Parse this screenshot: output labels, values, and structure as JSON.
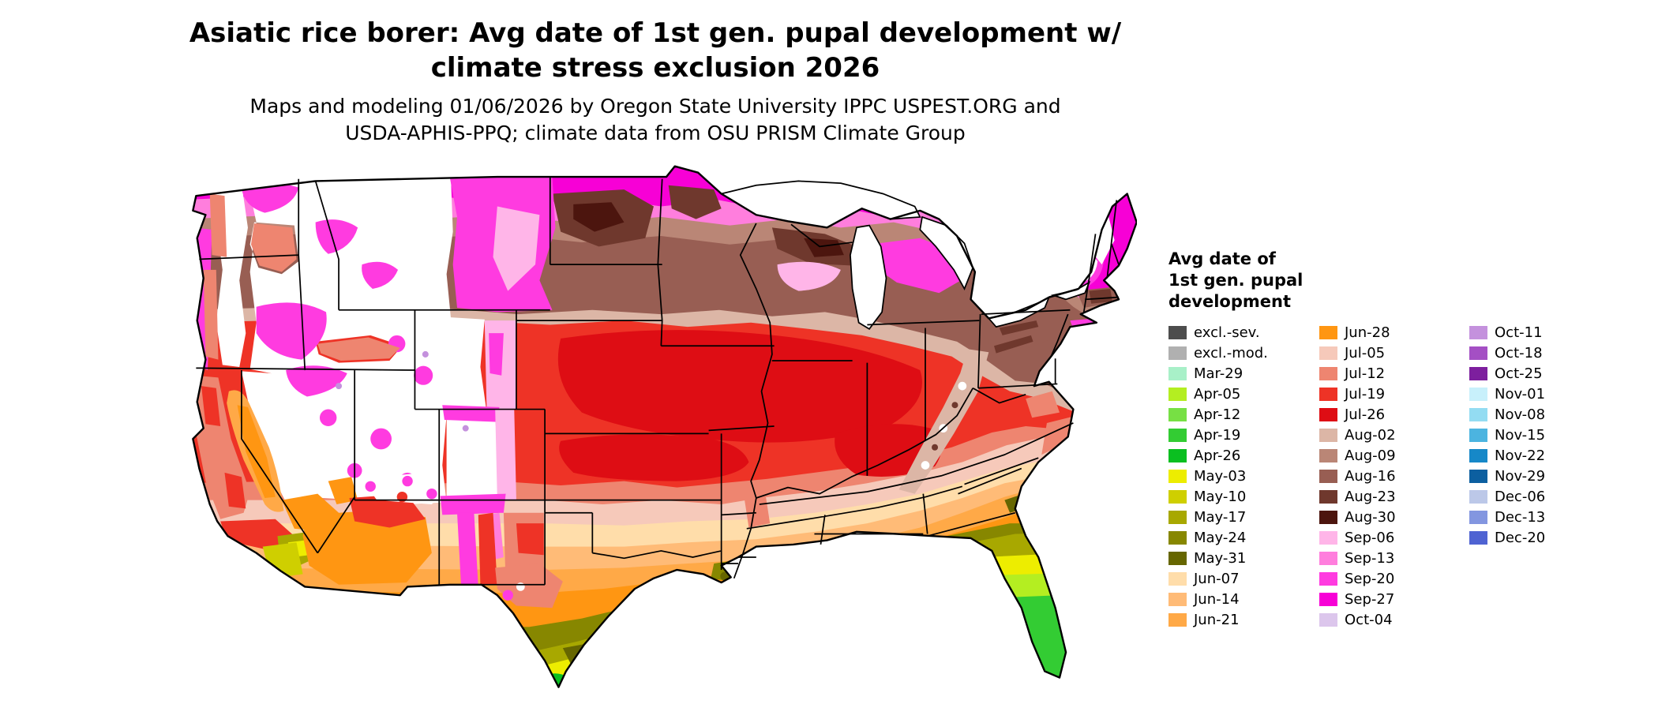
{
  "title": {
    "line1": "Asiatic rice borer: Avg date of 1st gen. pupal development w/",
    "line2": "climate stress exclusion 2026"
  },
  "subtitle": {
    "line1": "Maps and modeling 01/06/2026 by Oregon State University IPPC USPEST.ORG and",
    "line2": "USDA-APHIS-PPQ; climate data from OSU PRISM Climate Group"
  },
  "legend": {
    "title_lines": [
      "Avg date of",
      "1st gen. pupal",
      "development"
    ],
    "columns": [
      [
        {
          "label": "excl.-sev.",
          "color": "#4d4d4d"
        },
        {
          "label": "excl.-mod.",
          "color": "#b0b0b0"
        },
        {
          "label": "Mar-29",
          "color": "#a8f0c8"
        },
        {
          "label": "Apr-05",
          "color": "#b4ee21"
        },
        {
          "label": "Apr-12",
          "color": "#77e044"
        },
        {
          "label": "Apr-19",
          "color": "#33cc33"
        },
        {
          "label": "Apr-26",
          "color": "#0abf20"
        },
        {
          "label": "May-03",
          "color": "#eded00"
        },
        {
          "label": "May-10",
          "color": "#cfcf00"
        },
        {
          "label": "May-17",
          "color": "#a8a800"
        },
        {
          "label": "May-24",
          "color": "#878700"
        },
        {
          "label": "May-31",
          "color": "#666600"
        },
        {
          "label": "Jun-07",
          "color": "#ffddaa"
        },
        {
          "label": "Jun-14",
          "color": "#ffbb77"
        },
        {
          "label": "Jun-21",
          "color": "#ffa947"
        }
      ],
      [
        {
          "label": "Jun-28",
          "color": "#ff9612"
        },
        {
          "label": "Jul-05",
          "color": "#f6c9ba"
        },
        {
          "label": "Jul-12",
          "color": "#ee8570"
        },
        {
          "label": "Jul-19",
          "color": "#ee3326"
        },
        {
          "label": "Jul-26",
          "color": "#de0d14"
        },
        {
          "label": "Aug-02",
          "color": "#dcb6a6"
        },
        {
          "label": "Aug-09",
          "color": "#ba8676"
        },
        {
          "label": "Aug-16",
          "color": "#985e53"
        },
        {
          "label": "Aug-23",
          "color": "#6f382d"
        },
        {
          "label": "Aug-30",
          "color": "#4c150e"
        },
        {
          "label": "Sep-06",
          "color": "#ffb5e8"
        },
        {
          "label": "Sep-13",
          "color": "#ff7edd"
        },
        {
          "label": "Sep-20",
          "color": "#ff3be0"
        },
        {
          "label": "Sep-27",
          "color": "#f700d6"
        },
        {
          "label": "Oct-04",
          "color": "#dcc6ec"
        }
      ],
      [
        {
          "label": "Oct-11",
          "color": "#c491dd"
        },
        {
          "label": "Oct-18",
          "color": "#a44fc4"
        },
        {
          "label": "Oct-25",
          "color": "#7d1f9e"
        },
        {
          "label": "Nov-01",
          "color": "#c8f0fb"
        },
        {
          "label": "Nov-08",
          "color": "#93dcf2"
        },
        {
          "label": "Nov-15",
          "color": "#4cb4e0"
        },
        {
          "label": "Nov-22",
          "color": "#1688c8"
        },
        {
          "label": "Nov-29",
          "color": "#0c5fa0"
        },
        {
          "label": "Dec-06",
          "color": "#bcc8e8"
        },
        {
          "label": "Dec-13",
          "color": "#8396e0"
        },
        {
          "label": "Dec-20",
          "color": "#4f63d2"
        }
      ]
    ]
  }
}
